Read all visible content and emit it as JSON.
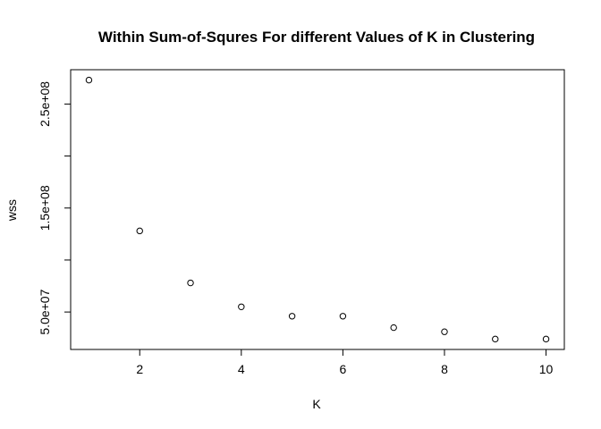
{
  "chart_data": {
    "type": "scatter",
    "title": "Within Sum-of-Squres For different Values of K in Clustering",
    "xlabel": "K",
    "ylabel": "wss",
    "x": [
      1,
      2,
      3,
      4,
      5,
      6,
      7,
      8,
      9,
      10
    ],
    "y": [
      273000000,
      128000000,
      78000000,
      55000000,
      46000000,
      46000000,
      35000000,
      31000000,
      24000000,
      24000000
    ],
    "xlim": [
      0.64,
      10.36
    ],
    "ylim": [
      14000000,
      283000000
    ],
    "x_ticks": [
      2,
      4,
      6,
      8,
      10
    ],
    "x_tick_labels": [
      "2",
      "4",
      "6",
      "8",
      "10"
    ],
    "y_ticks": [
      50000000,
      150000000,
      250000000
    ],
    "y_tick_labels": [
      "5.0e+07",
      "1.5e+08",
      "2.5e+08"
    ],
    "y_minor_ticks": [
      50000000,
      100000000,
      150000000,
      200000000,
      250000000
    ],
    "marker": "open-circle",
    "marker_color": "#000000",
    "grid": false,
    "legend": "none"
  }
}
